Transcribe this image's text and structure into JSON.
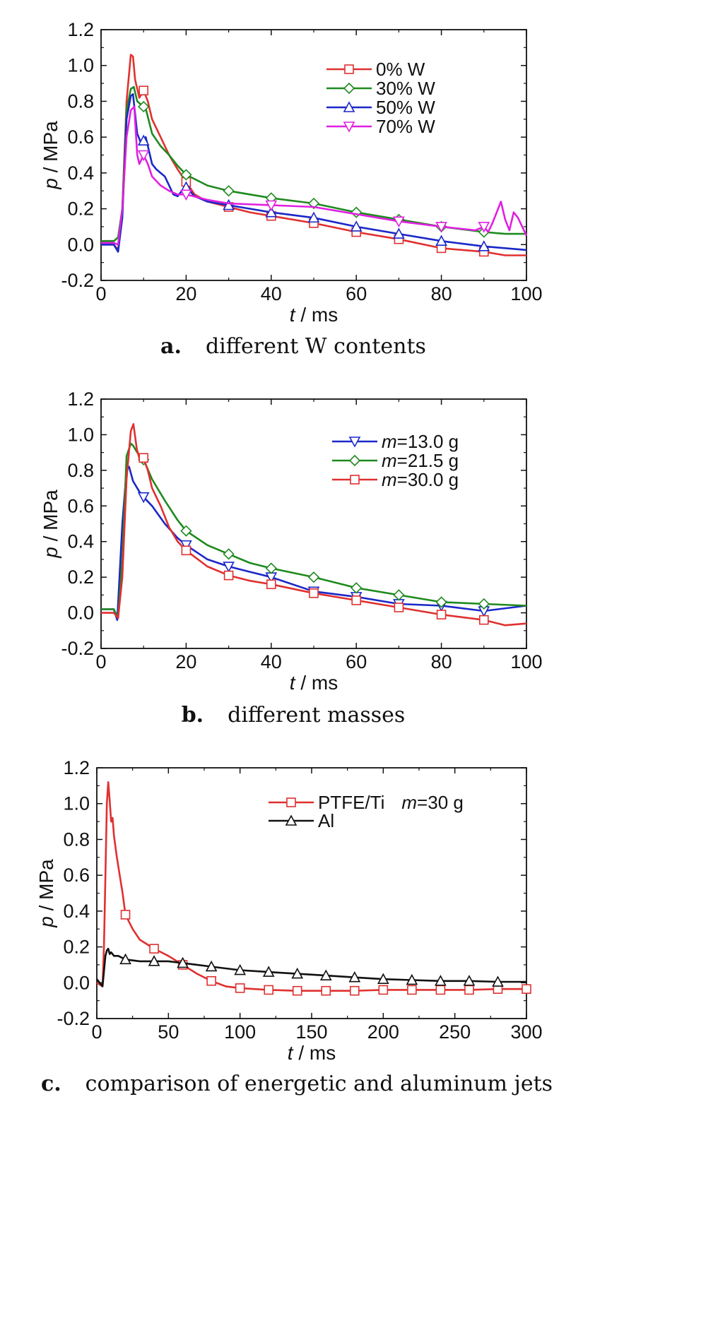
{
  "chart_data": [
    {
      "type": "line",
      "caption_letter": "a.",
      "caption": "different W contents",
      "xlabel_italic": "t",
      "xlabel_rest": " / ms",
      "ylabel_italic": "p",
      "ylabel_rest": " / MPa",
      "xlim": [
        0,
        100
      ],
      "ylim": [
        -0.2,
        1.2
      ],
      "xticks": [
        "0",
        "20",
        "40",
        "60",
        "80",
        "100"
      ],
      "yticks": [
        "-0.2",
        "0.0",
        "0.2",
        "0.4",
        "0.6",
        "0.8",
        "1.0",
        "1.2"
      ],
      "legend_position": "top-right",
      "series": [
        {
          "name": "0% W",
          "color": "#e03030",
          "marker": "square",
          "x": [
            0,
            3,
            4,
            5,
            6,
            7,
            7.5,
            8,
            9,
            10,
            11,
            12,
            14,
            16,
            18,
            20,
            22,
            25,
            30,
            35,
            40,
            50,
            60,
            70,
            80,
            90,
            95,
            100
          ],
          "y": [
            0.0,
            0.0,
            -0.03,
            0.2,
            0.8,
            1.06,
            1.05,
            0.92,
            0.82,
            0.86,
            0.8,
            0.7,
            0.6,
            0.5,
            0.42,
            0.35,
            0.28,
            0.24,
            0.21,
            0.18,
            0.16,
            0.12,
            0.07,
            0.03,
            -0.02,
            -0.04,
            -0.06,
            -0.06
          ],
          "marker_x": [
            10,
            20,
            30,
            40,
            50,
            60,
            70,
            80,
            90
          ]
        },
        {
          "name": "30% W",
          "color": "#1e8a1e",
          "marker": "diamond",
          "x": [
            0,
            3,
            4,
            5,
            6,
            7,
            7.7,
            8.5,
            9.5,
            10.5,
            12,
            14,
            16,
            18,
            20,
            25,
            30,
            35,
            40,
            50,
            60,
            70,
            80,
            90,
            95,
            100
          ],
          "y": [
            0.02,
            0.02,
            0.04,
            0.2,
            0.75,
            0.87,
            0.88,
            0.8,
            0.78,
            0.76,
            0.62,
            0.55,
            0.5,
            0.44,
            0.39,
            0.33,
            0.3,
            0.28,
            0.26,
            0.23,
            0.18,
            0.14,
            0.1,
            0.07,
            0.06,
            0.06
          ],
          "marker_x": [
            10,
            20,
            30,
            40,
            50,
            60,
            70,
            80,
            90
          ]
        },
        {
          "name": "50% W",
          "color": "#1a28c8",
          "marker": "triangle-up",
          "x": [
            0,
            3,
            4,
            5,
            6,
            7,
            7.5,
            8.5,
            9.5,
            10.5,
            12,
            13,
            14,
            15,
            16,
            17,
            18,
            19,
            20,
            22,
            25,
            30,
            40,
            50,
            60,
            70,
            80,
            90,
            100
          ],
          "y": [
            0.0,
            0.0,
            -0.04,
            0.15,
            0.7,
            0.83,
            0.84,
            0.62,
            0.56,
            0.6,
            0.45,
            0.42,
            0.4,
            0.38,
            0.33,
            0.28,
            0.27,
            0.3,
            0.32,
            0.27,
            0.24,
            0.22,
            0.18,
            0.15,
            0.1,
            0.06,
            0.02,
            -0.01,
            -0.03
          ],
          "marker_x": [
            10,
            20,
            30,
            40,
            50,
            60,
            70,
            80,
            90
          ]
        },
        {
          "name": "70% W",
          "color": "#e020e0",
          "marker": "triangle-down",
          "x": [
            0,
            3,
            4,
            5,
            6,
            7,
            7.8,
            8.5,
            9,
            10,
            11,
            12,
            14,
            16,
            18,
            20,
            25,
            30,
            40,
            50,
            60,
            70,
            80,
            88,
            90,
            91,
            92,
            93,
            94,
            95,
            96,
            97,
            98,
            99,
            100
          ],
          "y": [
            0.01,
            0.01,
            0.0,
            0.2,
            0.6,
            0.75,
            0.77,
            0.5,
            0.45,
            0.5,
            0.45,
            0.38,
            0.33,
            0.3,
            0.28,
            0.28,
            0.25,
            0.23,
            0.22,
            0.21,
            0.17,
            0.13,
            0.1,
            0.08,
            0.1,
            0.07,
            0.12,
            0.18,
            0.24,
            0.14,
            0.08,
            0.18,
            0.15,
            0.1,
            0.05
          ],
          "marker_x": [
            10,
            20,
            40,
            70,
            80,
            90
          ]
        }
      ]
    },
    {
      "type": "line",
      "caption_letter": "b.",
      "caption": "different masses",
      "xlabel_italic": "t",
      "xlabel_rest": " / ms",
      "ylabel_italic": "p",
      "ylabel_rest": " / MPa",
      "xlim": [
        0,
        100
      ],
      "ylim": [
        -0.2,
        1.2
      ],
      "xticks": [
        "0",
        "20",
        "40",
        "60",
        "80",
        "100"
      ],
      "yticks": [
        "-0.2",
        "0.0",
        "0.2",
        "0.4",
        "0.6",
        "0.8",
        "1.0",
        "1.2"
      ],
      "legend_position": "top-right",
      "series": [
        {
          "name_italic": "m",
          "name_rest": "=13.0 g",
          "color": "#1a28c8",
          "marker": "triangle-down",
          "x": [
            0,
            3,
            3.8,
            5,
            6,
            6.6,
            7.5,
            9,
            10,
            12,
            15,
            18,
            20,
            25,
            30,
            35,
            40,
            50,
            60,
            70,
            80,
            90,
            100
          ],
          "y": [
            0.02,
            0.02,
            -0.04,
            0.5,
            0.8,
            0.82,
            0.74,
            0.68,
            0.65,
            0.6,
            0.5,
            0.42,
            0.38,
            0.3,
            0.26,
            0.23,
            0.2,
            0.12,
            0.09,
            0.05,
            0.04,
            0.01,
            0.04
          ],
          "marker_x": [
            10,
            20,
            30,
            40,
            50,
            60,
            70,
            80,
            90
          ]
        },
        {
          "name_italic": "m",
          "name_rest": "=21.5 g",
          "color": "#1e8a1e",
          "marker": "diamond",
          "x": [
            0,
            3,
            4,
            5,
            6,
            7,
            7.5,
            8.5,
            10,
            12,
            15,
            18,
            20,
            25,
            30,
            35,
            40,
            50,
            60,
            70,
            80,
            90,
            100
          ],
          "y": [
            0.02,
            0.02,
            -0.03,
            0.3,
            0.88,
            0.95,
            0.94,
            0.9,
            0.86,
            0.75,
            0.63,
            0.52,
            0.46,
            0.38,
            0.33,
            0.28,
            0.25,
            0.2,
            0.14,
            0.1,
            0.06,
            0.05,
            0.04
          ],
          "marker_x": [
            10,
            20,
            30,
            40,
            50,
            60,
            70,
            80,
            90
          ]
        },
        {
          "name_italic": "m",
          "name_rest": "=30.0 g",
          "color": "#e03030",
          "marker": "square",
          "x": [
            0,
            3,
            4,
            5,
            6,
            7,
            7.6,
            8.4,
            9.2,
            10,
            11,
            12,
            14,
            16,
            18,
            20,
            25,
            30,
            35,
            40,
            50,
            60,
            70,
            80,
            90,
            95,
            100
          ],
          "y": [
            0.0,
            0.0,
            -0.03,
            0.2,
            0.75,
            1.02,
            1.06,
            0.92,
            0.85,
            0.87,
            0.8,
            0.7,
            0.6,
            0.48,
            0.4,
            0.35,
            0.26,
            0.21,
            0.18,
            0.16,
            0.11,
            0.07,
            0.03,
            -0.01,
            -0.04,
            -0.07,
            -0.06
          ],
          "marker_x": [
            10,
            20,
            30,
            40,
            50,
            60,
            70,
            80,
            90
          ]
        }
      ]
    },
    {
      "type": "line",
      "caption_letter": "c.",
      "caption": "comparison of energetic and aluminum jets",
      "xlabel_italic": "t",
      "xlabel_rest": " / ms",
      "ylabel_italic": "p",
      "ylabel_rest": " / MPa",
      "xlim": [
        0,
        300
      ],
      "ylim": [
        -0.2,
        1.2
      ],
      "xticks": [
        "0",
        "50",
        "100",
        "150",
        "200",
        "250",
        "300"
      ],
      "yticks": [
        "-0.2",
        "0.0",
        "0.2",
        "0.4",
        "0.6",
        "0.8",
        "1.0",
        "1.2"
      ],
      "legend_position": "top-right",
      "series": [
        {
          "name": "PTFE/Ti",
          "name_extra_italic": "m",
          "name_extra_rest": "=30 g",
          "color": "#e03030",
          "marker": "square",
          "x": [
            0,
            4,
            5,
            6,
            7,
            8,
            9,
            10,
            11,
            12,
            14,
            16,
            18,
            20,
            25,
            30,
            40,
            50,
            60,
            70,
            80,
            90,
            100,
            120,
            140,
            160,
            180,
            200,
            220,
            240,
            260,
            280,
            300
          ],
          "y": [
            0.0,
            -0.02,
            0.2,
            0.6,
            1.0,
            1.12,
            1.02,
            0.9,
            0.92,
            0.82,
            0.7,
            0.6,
            0.5,
            0.38,
            0.3,
            0.24,
            0.19,
            0.15,
            0.1,
            0.05,
            0.01,
            -0.02,
            -0.03,
            -0.04,
            -0.045,
            -0.045,
            -0.045,
            -0.04,
            -0.04,
            -0.04,
            -0.04,
            -0.035,
            -0.035
          ],
          "marker_x": [
            20,
            40,
            60,
            80,
            100,
            120,
            140,
            160,
            180,
            200,
            220,
            240,
            260,
            280,
            300
          ]
        },
        {
          "name": "Al",
          "color": "#111111",
          "marker": "triangle-up",
          "x": [
            0,
            4,
            6,
            7,
            8,
            9,
            10,
            12,
            15,
            20,
            30,
            40,
            50,
            60,
            70,
            80,
            100,
            120,
            140,
            160,
            180,
            200,
            220,
            240,
            260,
            280,
            300
          ],
          "y": [
            0.02,
            -0.02,
            0.15,
            0.18,
            0.19,
            0.16,
            0.17,
            0.15,
            0.15,
            0.13,
            0.12,
            0.12,
            0.12,
            0.11,
            0.1,
            0.09,
            0.07,
            0.06,
            0.05,
            0.04,
            0.03,
            0.02,
            0.015,
            0.01,
            0.01,
            0.005,
            0.005
          ],
          "marker_x": [
            20,
            40,
            60,
            80,
            100,
            120,
            140,
            160,
            180,
            200,
            220,
            240,
            260,
            280
          ]
        }
      ]
    }
  ]
}
